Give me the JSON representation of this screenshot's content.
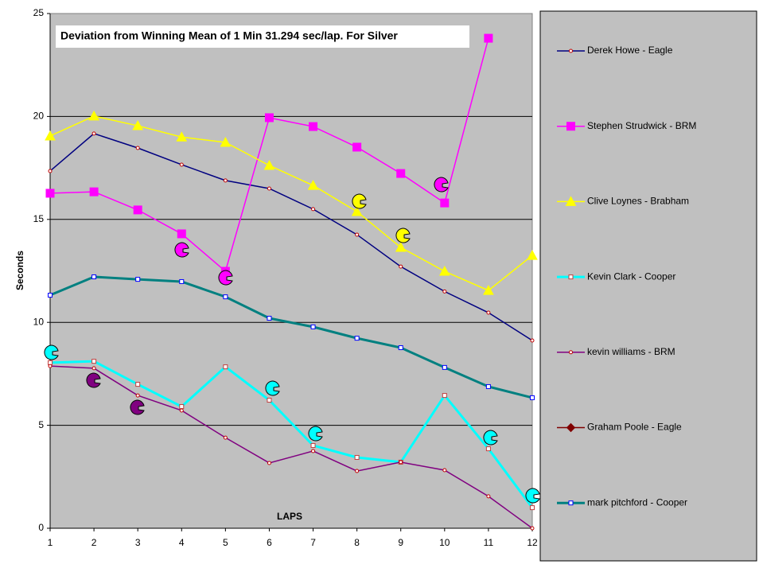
{
  "chart_data": {
    "type": "line",
    "title": "Deviation from Winning Mean of 1 Min 31.294 sec/lap. For Silver",
    "x_label": "LAPS",
    "y_label": "Seconds",
    "x": [
      1,
      2,
      3,
      4,
      5,
      6,
      7,
      8,
      9,
      10,
      11,
      12
    ],
    "xlim": [
      1,
      12
    ],
    "xticks": [
      1,
      2,
      3,
      4,
      5,
      6,
      7,
      8,
      9,
      10,
      11,
      12
    ],
    "ylim": [
      0,
      25
    ],
    "yticks": [
      0,
      5,
      10,
      15,
      20,
      25
    ],
    "grid": true,
    "legend": "right",
    "series": [
      {
        "name": "Derek Howe - Eagle",
        "color": "#000080",
        "marker": "dot",
        "values": [
          17.35,
          19.17,
          18.47,
          17.66,
          16.89,
          16.5,
          15.5,
          14.26,
          12.71,
          11.5,
          10.47,
          9.12
        ]
      },
      {
        "name": "Stephen Strudwick - BRM",
        "color": "#ff00ff",
        "marker": "square",
        "values": [
          16.27,
          16.34,
          15.46,
          14.3,
          12.48,
          19.94,
          19.51,
          18.51,
          17.23,
          15.8,
          23.8,
          null
        ]
      },
      {
        "name": "Clive Loynes - Brabham",
        "color": "#ffff00",
        "marker": "triangle",
        "values": [
          19.05,
          20.02,
          19.55,
          19.0,
          18.74,
          17.62,
          16.65,
          15.38,
          13.64,
          12.48,
          11.55,
          13.25
        ]
      },
      {
        "name": "Kevin Clark - Cooper",
        "color": "#00ffff",
        "marker": "open-square",
        "values": [
          8.04,
          8.11,
          6.99,
          5.91,
          7.84,
          6.22,
          4.02,
          3.44,
          3.21,
          6.45,
          3.86,
          1.0
        ]
      },
      {
        "name": "kevin williams - BRM",
        "color": "#800080",
        "marker": "dot",
        "values": [
          7.88,
          7.77,
          6.45,
          5.72,
          4.4,
          3.17,
          3.75,
          2.78,
          3.21,
          2.82,
          1.55,
          0
        ]
      },
      {
        "name": "Graham Poole - Eagle",
        "color": "#800000",
        "marker": "diamond",
        "values": [
          null,
          null,
          null,
          null,
          null,
          null,
          null,
          null,
          null,
          null,
          null,
          null
        ]
      },
      {
        "name": "mark pitchford - Cooper",
        "color": "#008080",
        "marker": "small-square",
        "values": [
          11.32,
          12.21,
          12.09,
          11.98,
          11.24,
          10.2,
          9.78,
          9.23,
          8.77,
          7.81,
          6.88,
          6.34
        ]
      }
    ]
  }
}
